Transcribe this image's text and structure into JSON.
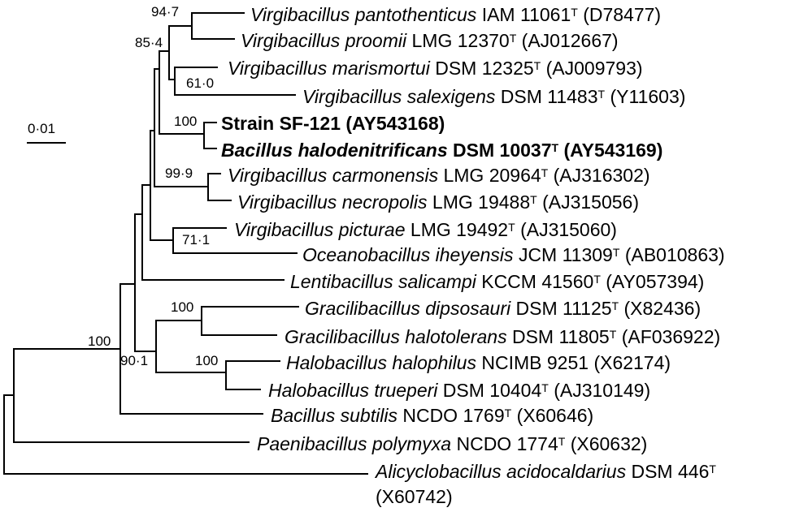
{
  "scale_bar": {
    "label": "0·01"
  },
  "taxa": [
    {
      "id": "t1",
      "genus_species": "Virgibacillus pantothenticus",
      "strain": "IAM 11061",
      "type_strain": true,
      "accession": "(D78477)",
      "bold": false
    },
    {
      "id": "t2",
      "genus_species": "Virgibacillus proomii",
      "strain": "LMG 12370",
      "type_strain": true,
      "accession": "(AJ012667)",
      "bold": false
    },
    {
      "id": "t3",
      "genus_species": "Virgibacillus marismortui",
      "strain": "DSM 12325",
      "type_strain": true,
      "accession": "(AJ009793)",
      "bold": false
    },
    {
      "id": "t4",
      "genus_species": "Virgibacillus salexigens",
      "strain": "DSM 11483",
      "type_strain": true,
      "accession": "(Y11603)",
      "bold": false
    },
    {
      "id": "t5",
      "genus_species": "",
      "strain": "Strain SF-121",
      "type_strain": false,
      "accession": "(AY543168)",
      "bold": true
    },
    {
      "id": "t6",
      "genus_species": "Bacillus halodenitrificans",
      "strain": "DSM 10037",
      "type_strain": true,
      "accession": "(AY543169)",
      "bold": true
    },
    {
      "id": "t7",
      "genus_species": "Virgibacillus carmonensis",
      "strain": "LMG 20964",
      "type_strain": true,
      "accession": "(AJ316302)",
      "bold": false
    },
    {
      "id": "t8",
      "genus_species": "Virgibacillus necropolis",
      "strain": "LMG 19488",
      "type_strain": true,
      "accession": "(AJ315056)",
      "bold": false
    },
    {
      "id": "t9",
      "genus_species": "Virgibacillus picturae",
      "strain": "LMG 19492",
      "type_strain": true,
      "accession": "(AJ315060)",
      "bold": false
    },
    {
      "id": "t10",
      "genus_species": "Oceanobacillus iheyensis",
      "strain": "JCM 11309",
      "type_strain": true,
      "accession": "(AB010863)",
      "bold": false
    },
    {
      "id": "t11",
      "genus_species": "Lentibacillus salicampi",
      "strain": "KCCM 41560",
      "type_strain": true,
      "accession": "(AY057394)",
      "bold": false
    },
    {
      "id": "t12",
      "genus_species": "Gracilibacillus dipsosauri",
      "strain": "DSM 11125",
      "type_strain": true,
      "accession": "(X82436)",
      "bold": false
    },
    {
      "id": "t13",
      "genus_species": "Gracilibacillus halotolerans",
      "strain": "DSM 11805",
      "type_strain": true,
      "accession": "(AF036922)",
      "bold": false
    },
    {
      "id": "t14",
      "genus_species": "Halobacillus halophilus",
      "strain": "NCIMB 9251",
      "type_strain": false,
      "accession": "(X62174)",
      "bold": false
    },
    {
      "id": "t15",
      "genus_species": "Halobacillus trueperi",
      "strain": "DSM 10404",
      "type_strain": true,
      "accession": "(AJ310149)",
      "bold": false
    },
    {
      "id": "t16",
      "genus_species": "Bacillus subtilis",
      "strain": "NCDO 1769",
      "type_strain": true,
      "accession": "(X60646)",
      "bold": false
    },
    {
      "id": "t17",
      "genus_species": "Paenibacillus polymyxa",
      "strain": "NCDO 1774",
      "type_strain": true,
      "accession": "(X60632)",
      "bold": false
    },
    {
      "id": "t18",
      "genus_species": "Alicyclobacillus acidocaldarius",
      "strain": "DSM 446",
      "type_strain": true,
      "accession": "(X60742)",
      "bold": false
    }
  ],
  "type_mark": "T",
  "bootstrap": [
    {
      "id": "b1",
      "value": "94·7"
    },
    {
      "id": "b2",
      "value": "85·4"
    },
    {
      "id": "b3",
      "value": "61·0"
    },
    {
      "id": "b4",
      "value": "100"
    },
    {
      "id": "b5",
      "value": "99·9"
    },
    {
      "id": "b6",
      "value": "71·1"
    },
    {
      "id": "b7",
      "value": "100"
    },
    {
      "id": "b8",
      "value": "100"
    },
    {
      "id": "b9",
      "value": "100"
    },
    {
      "id": "b10",
      "value": "90·1"
    }
  ]
}
